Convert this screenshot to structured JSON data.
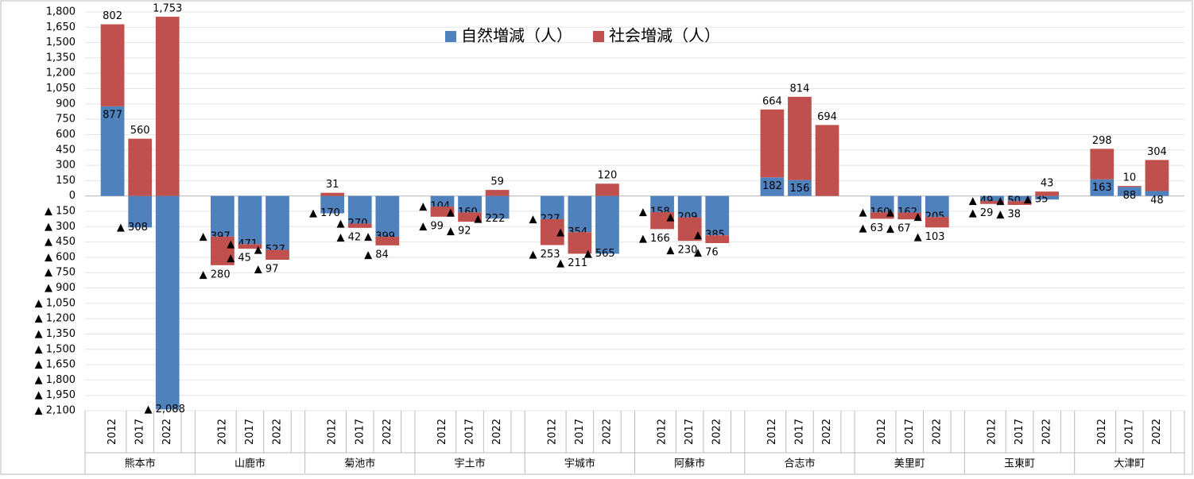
{
  "chart_data": {
    "type": "bar",
    "stacked": true,
    "groups": [
      "熊本市",
      "山鹿市",
      "菊池市",
      "宇土市",
      "宇城市",
      "阿蘇市",
      "合志市",
      "美里町",
      "玉東町",
      "大津町"
    ],
    "categories": [
      "2012",
      "2017",
      "2022",
      "2012",
      "2017",
      "2022",
      "2012",
      "2017",
      "2022",
      "2012",
      "2017",
      "2022",
      "2012",
      "2017",
      "2022",
      "2012",
      "2017",
      "2022",
      "2012",
      "2017",
      "2022",
      "2012",
      "2017",
      "2022",
      "2012",
      "2017",
      "2022",
      "2012",
      "2017",
      "2022"
    ],
    "series": [
      {
        "name": "自然増減（人）",
        "color": "#4f81bd",
        "values": [
          877,
          -308,
          -2088,
          -397,
          -471,
          -527,
          -170,
          -270,
          -399,
          -104,
          -160,
          -222,
          -227,
          -354,
          -565,
          -158,
          -209,
          -385,
          182,
          156,
          0,
          -160,
          -162,
          -205,
          -49,
          -50,
          -35,
          163,
          88,
          48
        ],
        "value_labels": [
          "877",
          "▲ 308",
          "▲ 2,088",
          "▲ 397",
          "▲ 471",
          "▲ 527",
          "▲ 170",
          "▲ 270",
          "▲ 399",
          "▲ 104",
          "▲ 160",
          "▲ 222",
          "▲ 227",
          "▲ 354",
          "▲ 565",
          "▲ 158",
          "▲ 209",
          "▲ 385",
          "182",
          "156",
          "0",
          "▲ 160",
          "▲ 162",
          "▲ 205",
          "▲ 49",
          "▲ 50",
          "▲ 35",
          "163",
          "88",
          "48"
        ]
      },
      {
        "name": "社会増減（人）",
        "color": "#c0504d",
        "values": [
          802,
          560,
          1753,
          -280,
          -45,
          -97,
          31,
          -42,
          -84,
          -99,
          -92,
          59,
          -253,
          -211,
          120,
          -166,
          -230,
          -76,
          664,
          814,
          694,
          -63,
          -67,
          -103,
          -29,
          -38,
          43,
          298,
          10,
          304
        ],
        "value_labels": [
          "802",
          "560",
          "1,753",
          "▲ 280",
          "▲ 45",
          "▲ 97",
          "31",
          "▲ 42",
          "▲ 84",
          "▲ 99",
          "▲ 92",
          "59",
          "▲ 253",
          "▲ 211",
          "120",
          "▲ 166",
          "▲ 230",
          "▲ 76",
          "664",
          "814",
          "694",
          "▲ 63",
          "▲ 67",
          "▲ 103",
          "▲ 29",
          "▲ 38",
          "43",
          "298",
          "10",
          "304"
        ]
      }
    ],
    "ylim": [
      -2100,
      1800
    ],
    "yticks": [
      {
        "value": -2100,
        "label": "▲ 2,100"
      },
      {
        "value": -1950,
        "label": "▲ 1,950"
      },
      {
        "value": -1800,
        "label": "▲ 1,800"
      },
      {
        "value": -1650,
        "label": "▲ 1,650"
      },
      {
        "value": -1500,
        "label": "▲ 1,500"
      },
      {
        "value": -1350,
        "label": "▲ 1,350"
      },
      {
        "value": -1200,
        "label": "▲ 1,200"
      },
      {
        "value": -1050,
        "label": "▲ 1,050"
      },
      {
        "value": -900,
        "label": "▲ 900"
      },
      {
        "value": -750,
        "label": "▲ 750"
      },
      {
        "value": -600,
        "label": "▲ 600"
      },
      {
        "value": -450,
        "label": "▲ 450"
      },
      {
        "value": -300,
        "label": "▲ 300"
      },
      {
        "value": -150,
        "label": "▲ 150"
      },
      0,
      150,
      300,
      450,
      600,
      750,
      900,
      {
        "value": 1050,
        "label": "1,050"
      },
      {
        "value": 1200,
        "label": "1,200"
      },
      {
        "value": 1350,
        "label": "1,350"
      },
      {
        "value": 1500,
        "label": "1,500"
      },
      {
        "value": 1650,
        "label": "1,650"
      },
      {
        "value": 1800,
        "label": "1,800"
      }
    ],
    "grid": true,
    "legend": "top"
  }
}
